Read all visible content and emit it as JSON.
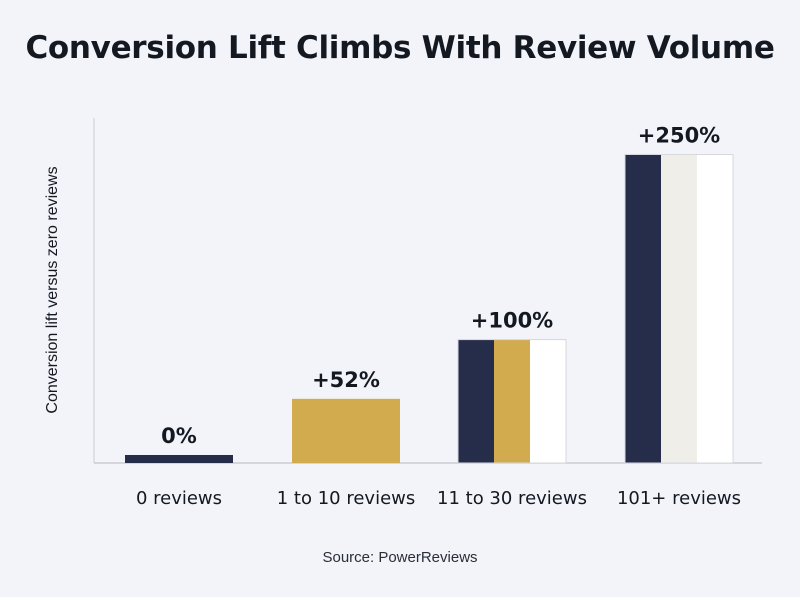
{
  "chart_data": {
    "type": "bar",
    "title": "Conversion Lift Climbs With Review Volume",
    "ylabel": "Conversion lift versus zero reviews",
    "xlabel": "",
    "categories": [
      "0 reviews",
      "1 to 10 reviews",
      "11 to 30 reviews",
      "101+ reviews"
    ],
    "values": [
      0,
      52,
      100,
      250
    ],
    "value_labels": [
      "0%",
      "+52%",
      "+100%",
      "+250%"
    ],
    "ylim": [
      -6,
      304
    ],
    "grid": false,
    "legend": "none",
    "source": "Source: PowerReviews"
  },
  "colors": {
    "navy": "#262d4a",
    "gold": "#d2ab4e",
    "cream": "#efeee9",
    "white": "#ffffff",
    "axis": "#c9ccd3",
    "text": "#141821",
    "background": "#f2f4f9"
  }
}
